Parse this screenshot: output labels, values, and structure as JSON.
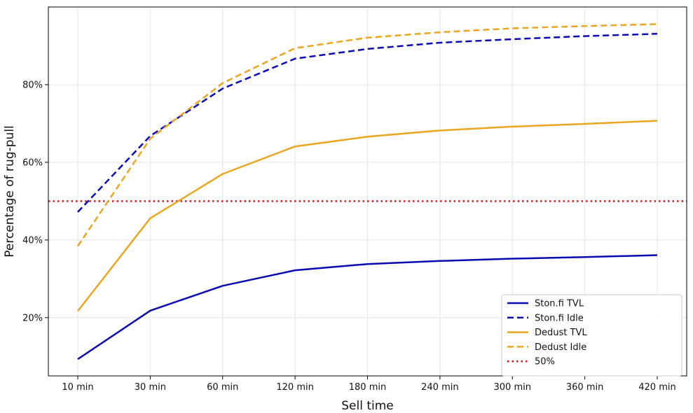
{
  "chart_data": {
    "type": "line",
    "xlabel": "Sell time",
    "ylabel": "Percentage of rug-pull",
    "categories": [
      "10 min",
      "30 min",
      "60 min",
      "120 min",
      "180 min",
      "240 min",
      "300 min",
      "360 min",
      "420 min"
    ],
    "ylim": [
      5,
      100
    ],
    "yticks": [
      20,
      40,
      60,
      80
    ],
    "ytick_labels": [
      "20%",
      "40%",
      "60%",
      "80%"
    ],
    "grid": true,
    "legend_position": "bottom-right",
    "series": [
      {
        "name": "Ston.fi TVL",
        "color": "#0a0ab4",
        "dash": "solid",
        "values": [
          9.3,
          21.8,
          28.2,
          32.2,
          33.8,
          34.6,
          35.2,
          35.6,
          36.1
        ]
      },
      {
        "name": "Ston.fi Idle",
        "color": "#0a0ab4",
        "dash": "dashed",
        "values": [
          47.2,
          66.8,
          79.0,
          86.7,
          89.2,
          90.8,
          91.7,
          92.5,
          93.1
        ]
      },
      {
        "name": "Dedust TVL",
        "color": "#eaa620",
        "dash": "solid",
        "values": [
          21.7,
          45.6,
          57.0,
          64.1,
          66.6,
          68.2,
          69.2,
          69.9,
          70.7
        ]
      },
      {
        "name": "Dedust Idle",
        "color": "#eaa620",
        "dash": "dashed",
        "values": [
          38.4,
          66.1,
          80.4,
          89.4,
          92.1,
          93.5,
          94.5,
          95.1,
          95.6
        ]
      }
    ],
    "reference_line": {
      "name": "50%",
      "value": 50,
      "color": "#d11a1a",
      "dash": "dotted"
    }
  }
}
